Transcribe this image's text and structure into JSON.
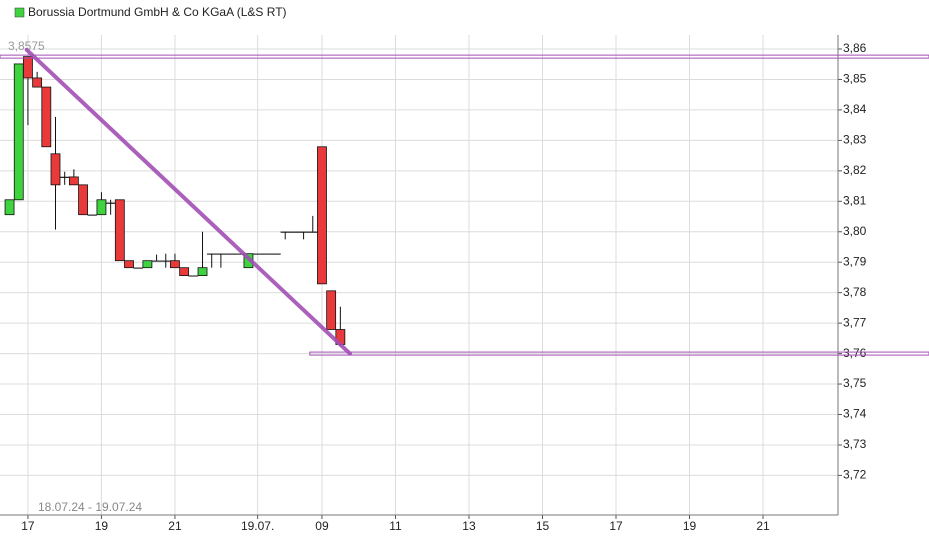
{
  "chart_data": {
    "type": "candlestick",
    "title": "Borussia Dortmund GmbH & Co KGaA (L&S RT)",
    "date_range": "18.07.24 - 19.07.24",
    "up_color": "#3fd43f",
    "down_color": "#e83a3a",
    "annotation_color": "#a24fb5",
    "grid": true,
    "x": [
      16.5,
      16.75,
      17,
      17.25,
      17.5,
      17.75,
      18,
      18.25,
      18.5,
      18.75,
      19,
      19.25,
      19.5,
      19.75,
      20,
      20.25,
      20.5,
      20.75,
      21,
      21.25,
      21.5,
      21.75,
      22,
      22.25,
      22.5,
      22.75,
      23,
      23.25,
      23.5,
      23.75,
      24,
      24.25,
      24.5,
      24.75,
      25,
      25.25,
      25.5
    ],
    "open": [
      3.8056,
      3.8105,
      3.8575,
      3.8505,
      3.8475,
      3.8256,
      3.818,
      3.818,
      3.8154,
      3.8056,
      3.8056,
      3.8095,
      3.8105,
      3.7905,
      3.7882,
      3.7882,
      3.7905,
      3.7905,
      3.7905,
      3.7882,
      3.7856,
      3.7856,
      3.7928,
      3.7928,
      3.7928,
      3.7928,
      3.7882,
      3.7928,
      3.7928,
      3.7928,
      3.8,
      3.8,
      3.8,
      3.8,
      3.8279,
      3.7806,
      3.7679
    ],
    "high": [
      3.8105,
      3.8551,
      3.8575,
      3.8525,
      3.8475,
      3.8377,
      3.8197,
      3.8205,
      3.8154,
      3.8056,
      3.813,
      3.8105,
      3.8105,
      3.7905,
      3.7882,
      3.7905,
      3.7925,
      3.7928,
      3.7928,
      3.7882,
      3.7856,
      3.8,
      3.7928,
      3.7928,
      3.7928,
      3.7928,
      3.7928,
      3.7928,
      3.7928,
      3.7928,
      3.8,
      3.8,
      3.8,
      3.8052,
      3.8279,
      3.7806,
      3.7754
    ],
    "low": [
      3.8056,
      3.8105,
      3.835,
      3.8475,
      3.8279,
      3.8007,
      3.8154,
      3.8154,
      3.8056,
      3.8056,
      3.8056,
      3.8056,
      3.7905,
      3.7882,
      3.7882,
      3.7882,
      3.7905,
      3.7882,
      3.7882,
      3.7856,
      3.7856,
      3.7856,
      3.7882,
      3.7882,
      3.7928,
      3.7928,
      3.7882,
      3.7928,
      3.7928,
      3.7928,
      3.7975,
      3.8,
      3.7975,
      3.8,
      3.7829,
      3.7679,
      3.7623
    ],
    "close": [
      3.8105,
      3.8551,
      3.8505,
      3.8475,
      3.8279,
      3.8154,
      3.818,
      3.8154,
      3.8056,
      3.8056,
      3.8105,
      3.8095,
      3.7905,
      3.7882,
      3.7882,
      3.7905,
      3.7905,
      3.7905,
      3.7882,
      3.7856,
      3.7856,
      3.7882,
      3.7928,
      3.7928,
      3.7928,
      3.7928,
      3.7928,
      3.7928,
      3.7928,
      3.7928,
      3.8,
      3.8,
      3.8,
      3.8,
      3.7829,
      3.7679,
      3.763
    ],
    "xlim": [
      16.24,
      39.04
    ],
    "ylim": [
      3.707,
      3.8646
    ],
    "xticks": [
      {
        "value": 17,
        "label": "17"
      },
      {
        "value": 19,
        "label": "19"
      },
      {
        "value": 21,
        "label": "21"
      },
      {
        "value": 23.25,
        "label": "19.07."
      },
      {
        "value": 25,
        "label": "09"
      },
      {
        "value": 27,
        "label": "11"
      },
      {
        "value": 29,
        "label": "13"
      },
      {
        "value": 31,
        "label": "15"
      },
      {
        "value": 33,
        "label": "17"
      },
      {
        "value": 35,
        "label": "19"
      },
      {
        "value": 37,
        "label": "21"
      }
    ],
    "yticks": [
      {
        "value": 3.72,
        "label": "3,72"
      },
      {
        "value": 3.73,
        "label": "3,73"
      },
      {
        "value": 3.74,
        "label": "3,74"
      },
      {
        "value": 3.75,
        "label": "3,75"
      },
      {
        "value": 3.76,
        "label": "3,76"
      },
      {
        "value": 3.77,
        "label": "3,77"
      },
      {
        "value": 3.78,
        "label": "3,78"
      },
      {
        "value": 3.79,
        "label": "3,79"
      },
      {
        "value": 3.8,
        "label": "3,80"
      },
      {
        "value": 3.81,
        "label": "3,81"
      },
      {
        "value": 3.82,
        "label": "3,82"
      },
      {
        "value": 3.83,
        "label": "3,83"
      },
      {
        "value": 3.84,
        "label": "3,84"
      },
      {
        "value": 3.85,
        "label": "3,85"
      },
      {
        "value": 3.86,
        "label": "3,86"
      }
    ],
    "annotations": {
      "high_line": {
        "value": 3.8575,
        "label": "3,8575"
      },
      "low_line": {
        "value": 3.76,
        "start_x": 24.67
      },
      "trendline": {
        "x": [
          16.97,
          25.76
        ],
        "y": [
          3.8597,
          3.76
        ]
      }
    }
  }
}
